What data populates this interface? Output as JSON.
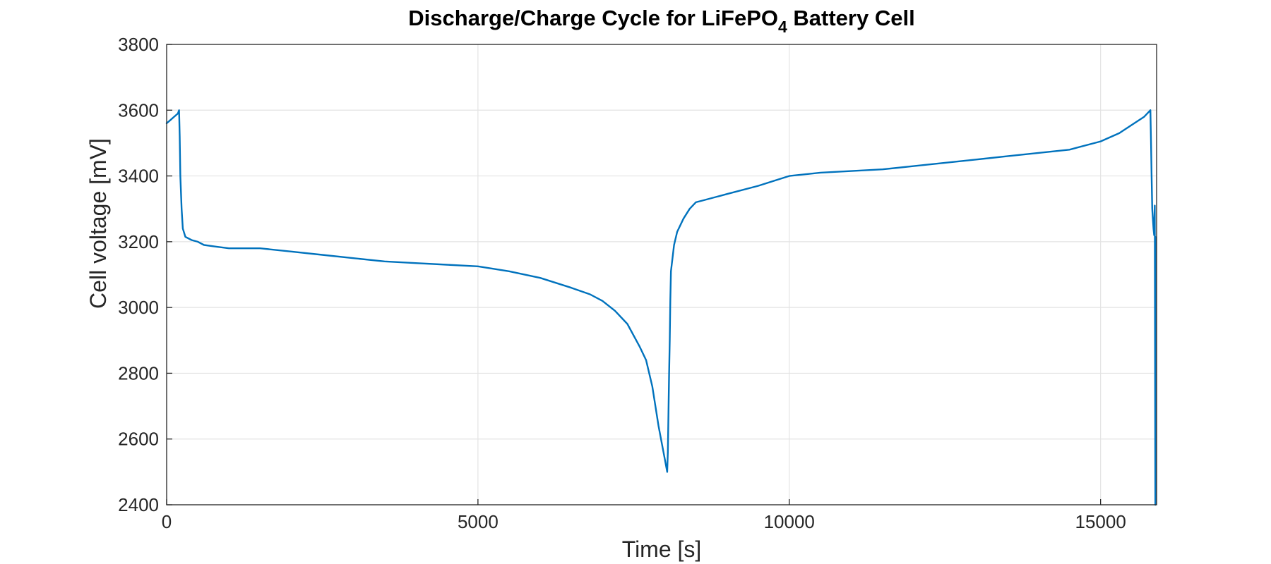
{
  "chart_data": {
    "type": "line",
    "title": "Discharge/Charge Cycle for LiFePO",
    "title_subscript": "4",
    "title_suffix": " Battery Cell",
    "xlabel": "Time [s]",
    "ylabel": "Cell voltage [mV]",
    "xlim": [
      0,
      15900
    ],
    "ylim": [
      2400,
      3800
    ],
    "xticks": [
      0,
      5000,
      10000,
      15000
    ],
    "yticks": [
      2400,
      2600,
      2800,
      3000,
      3200,
      3400,
      3600,
      3800
    ],
    "xtick_labels": [
      "0",
      "5000",
      "10000",
      "15000"
    ],
    "ytick_labels": [
      "2400",
      "2600",
      "2800",
      "3000",
      "3200",
      "3400",
      "3600",
      "3800"
    ],
    "grid": true,
    "color": "#0072BD",
    "series": [
      {
        "x": [
          0,
          60,
          120,
          180,
          200,
          210,
          220,
          240,
          260,
          300,
          350,
          400,
          500,
          600,
          800,
          1000,
          1500,
          2000,
          2500,
          3000,
          3500,
          4000,
          4500,
          5000,
          5500,
          6000,
          6500,
          6800,
          7000,
          7200,
          7400,
          7600,
          7700,
          7800,
          7900,
          8000,
          8040,
          8050,
          8060,
          8070,
          8080,
          8090,
          8100,
          8150,
          8200,
          8300,
          8400,
          8500,
          8600,
          9000,
          9500,
          10000,
          10500,
          11000,
          11500,
          12000,
          12500,
          13000,
          13500,
          14000,
          14500,
          15000,
          15300,
          15500,
          15700,
          15800,
          15810,
          15820,
          15830,
          15850,
          15860,
          15870,
          15880,
          15880
        ],
        "y": [
          3560,
          3570,
          3580,
          3590,
          3600,
          3520,
          3400,
          3300,
          3240,
          3215,
          3210,
          3205,
          3200,
          3190,
          3185,
          3180,
          3180,
          3170,
          3160,
          3150,
          3140,
          3135,
          3130,
          3125,
          3110,
          3090,
          3060,
          3040,
          3020,
          2990,
          2950,
          2880,
          2840,
          2760,
          2640,
          2540,
          2500,
          2560,
          2680,
          2800,
          2900,
          3020,
          3110,
          3190,
          3230,
          3270,
          3300,
          3320,
          3325,
          3345,
          3370,
          3400,
          3410,
          3415,
          3420,
          3430,
          3440,
          3450,
          3460,
          3470,
          3480,
          3505,
          3530,
          3555,
          3580,
          3600,
          3500,
          3400,
          3300,
          3240,
          3220,
          3310,
          2400,
          3215
        ]
      }
    ]
  }
}
